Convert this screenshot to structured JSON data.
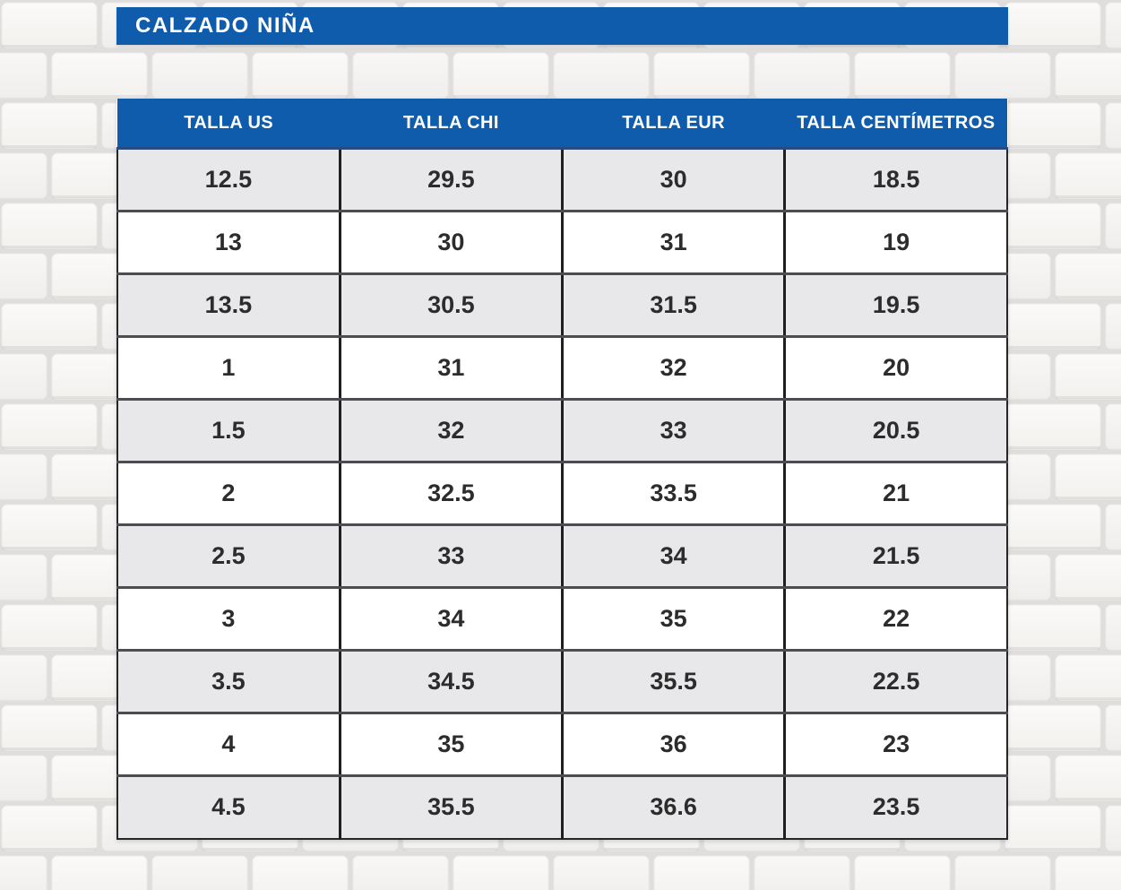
{
  "title": "CALZADO NIÑA",
  "colors": {
    "accent_blue": "#0F5CAD",
    "header_text": "#FFFFFF",
    "row_alt_gray": "#E8E8EA",
    "row_white": "#FFFFFF",
    "cell_text": "#2C2C2C",
    "cell_border_vertical": "#1F1F1F",
    "cell_border_horizontal": "#4C4D50"
  },
  "chart_data": {
    "type": "table",
    "title": "CALZADO NIÑA",
    "columns": [
      "TALLA US",
      "TALLA CHI",
      "TALLA EUR",
      "TALLA CENTÍMETROS"
    ],
    "rows": [
      [
        "12.5",
        "29.5",
        "30",
        "18.5"
      ],
      [
        "13",
        "30",
        "31",
        "19"
      ],
      [
        "13.5",
        "30.5",
        "31.5",
        "19.5"
      ],
      [
        "1",
        "31",
        "32",
        "20"
      ],
      [
        "1.5",
        "32",
        "33",
        "20.5"
      ],
      [
        "2",
        "32.5",
        "33.5",
        "21"
      ],
      [
        "2.5",
        "33",
        "34",
        "21.5"
      ],
      [
        "3",
        "34",
        "35",
        "22"
      ],
      [
        "3.5",
        "34.5",
        "35.5",
        "22.5"
      ],
      [
        "4",
        "35",
        "36",
        "23"
      ],
      [
        "4.5",
        "35.5",
        "36.6",
        "23.5"
      ]
    ],
    "layout": {
      "legend": "none",
      "grid": "on",
      "alternating_rows": true
    }
  }
}
